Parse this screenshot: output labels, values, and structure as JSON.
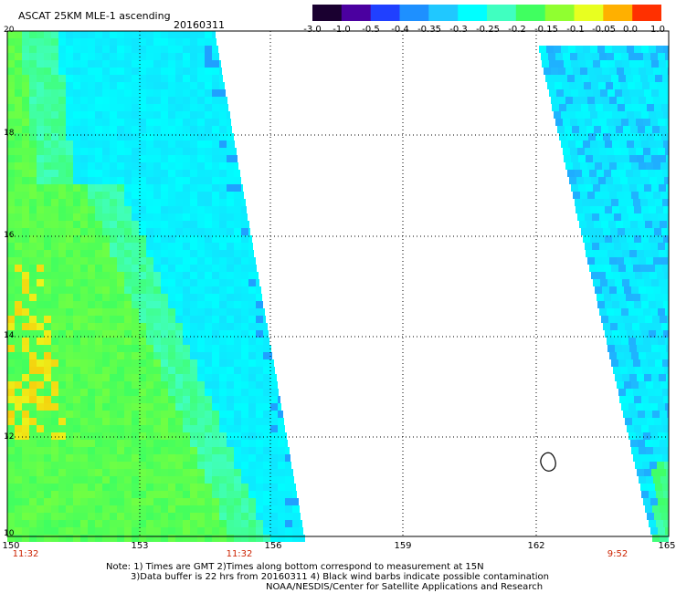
{
  "header": {
    "title": "ASCAT 25KM MLE-1 ascending",
    "date": "20160311"
  },
  "colorbar": {
    "ticks": [
      "-3.0",
      "-1.0",
      "-0.5",
      "-0.4",
      "-0.35",
      "-0.3",
      "-0.25",
      "-0.2",
      "-0.15",
      "-0.1",
      "-0.05",
      "0.0",
      "1.0"
    ],
    "colors": [
      "#1a0030",
      "#4b00a0",
      "#2040ff",
      "#1e90ff",
      "#20c8ff",
      "#00ffff",
      "#40ffc0",
      "#40ff60",
      "#90ff30",
      "#e8ff20",
      "#ffb000",
      "#ff3000"
    ]
  },
  "map": {
    "lat_labels": [
      "20",
      "18",
      "16",
      "14",
      "12",
      "10"
    ],
    "lon_labels": [
      "150",
      "153",
      "156",
      "159",
      "162",
      "165"
    ],
    "time_labels": [
      "11:32",
      "11:32",
      "9:52"
    ],
    "lat_range": [
      10,
      20
    ],
    "lon_range": [
      150,
      165
    ]
  },
  "notes": {
    "line1": "Note: 1) Times are GMT 2)Times along bottom correspond to measurement at 15N",
    "line2": "3)Data buffer is 22 hrs from 20160311 4) Black wind barbs indicate possible contamination",
    "line3": "NOAA/NESDIS/Center for Satellite Applications and Research"
  }
}
